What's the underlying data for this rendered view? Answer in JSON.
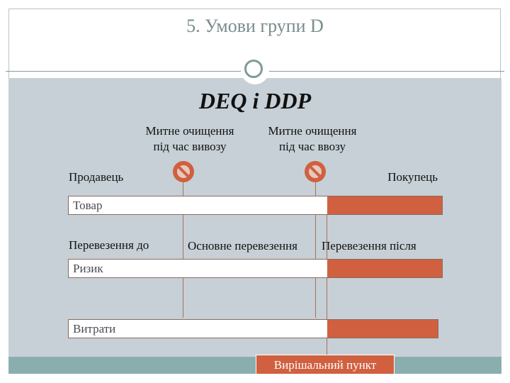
{
  "title": "5. Умови групи D",
  "subtitle": "DEQ і DDP",
  "customs": [
    {
      "line1": "Митне очищення",
      "line2": "під час вивозу"
    },
    {
      "line1": "Митне очищення",
      "line2": "під час ввозу"
    }
  ],
  "seller": "Продавець",
  "buyer": "Покупець",
  "bars": [
    "Товар",
    "Ризик",
    "Витрати"
  ],
  "transport": [
    "Перевезення до",
    "Основне перевезення",
    "Перевезення після"
  ],
  "decision_point": "Вирішальний пункт",
  "colors": {
    "accent": "#d0603f",
    "background": "#c6d0d6",
    "band": "#8aaeae"
  },
  "icons": [
    "no-entry-icon",
    "no-entry-icon"
  ]
}
